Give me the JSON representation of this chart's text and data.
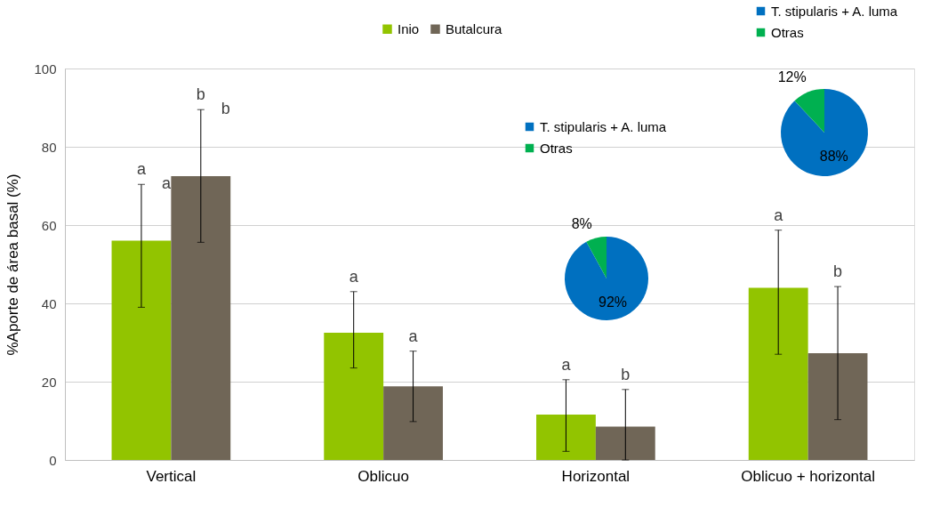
{
  "chart_data": [
    {
      "type": "bar",
      "ylabel": "%Aporte de área basal (%)",
      "categories": [
        "Vertical",
        "Oblicuo",
        "Horizontal",
        "Oblicuo + horizontal"
      ],
      "series": [
        {
          "name": "Inio",
          "color": "#92c400",
          "values": [
            56,
            32.5,
            11.6,
            44
          ],
          "errors": [
            [
              39,
              70.4
            ],
            [
              23.5,
              43
            ],
            [
              2.2,
              20.5
            ],
            [
              27,
              58.7
            ]
          ]
        },
        {
          "name": "Butalcura",
          "color": "#706657",
          "values": [
            72.5,
            18.8,
            8.5,
            27.3
          ],
          "errors": [
            [
              55.6,
              89.5
            ],
            [
              9.8,
              27.8
            ],
            [
              0,
              18
            ],
            [
              10.3,
              44.3
            ]
          ]
        }
      ],
      "annotations": [
        "a",
        "b",
        "a",
        "a",
        "a",
        "b",
        "a",
        "b",
        "a",
        "b"
      ],
      "ylim": [
        0,
        100
      ],
      "yticks": [
        0,
        20,
        40,
        60,
        80,
        100
      ],
      "grid": "y",
      "legend": "top"
    },
    {
      "type": "pie",
      "categories": [
        "T. stipularis + A. luma",
        "Otras"
      ],
      "values": [
        92,
        8
      ],
      "colors": [
        "#0070c0",
        "#00b050"
      ],
      "value_labels": [
        "92%",
        "8%"
      ],
      "legend": "top left"
    },
    {
      "type": "pie",
      "categories": [
        "T. stipularis + A. luma",
        "Otras"
      ],
      "values": [
        88,
        12
      ],
      "colors": [
        "#0070c0",
        "#00b050"
      ],
      "value_labels": [
        "88%",
        "12%"
      ],
      "legend": "top"
    }
  ]
}
